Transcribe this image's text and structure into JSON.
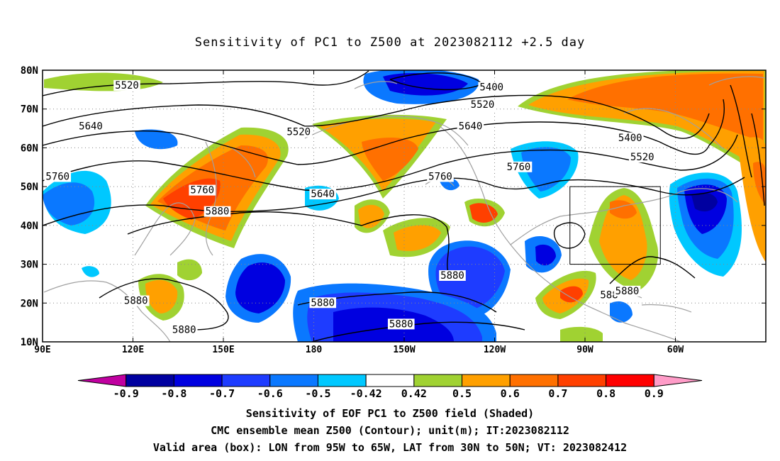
{
  "title": "Sensitivity of PC1 to Z500 at 2023082112 +2.5 day",
  "lat_labels": [
    "80N",
    "70N",
    "60N",
    "50N",
    "40N",
    "30N",
    "20N",
    "10N"
  ],
  "lon_labels": [
    "90E",
    "120E",
    "150E",
    "180",
    "150W",
    "120W",
    "90W",
    "60W"
  ],
  "contour_labels": [
    {
      "text": "5520",
      "lon": 118,
      "lat": 76
    },
    {
      "text": "5400",
      "lon": -121,
      "lat": 75.5
    },
    {
      "text": "5520",
      "lon": -124,
      "lat": 71
    },
    {
      "text": "5640",
      "lon": -128,
      "lat": 65.5
    },
    {
      "text": "5400",
      "lon": -75,
      "lat": 62.5
    },
    {
      "text": "5520",
      "lon": -71,
      "lat": 57.5
    },
    {
      "text": "5640",
      "lon": 106,
      "lat": 65.5
    },
    {
      "text": "5520",
      "lon": 175,
      "lat": 64
    },
    {
      "text": "5760",
      "lon": -138,
      "lat": 52.5
    },
    {
      "text": "5760",
      "lon": -112,
      "lat": 55
    },
    {
      "text": "5760",
      "lon": 95,
      "lat": 52.5
    },
    {
      "text": "5760",
      "lon": 143,
      "lat": 49
    },
    {
      "text": "5640",
      "lon": -177,
      "lat": 48
    },
    {
      "text": "5880",
      "lon": 148,
      "lat": 43.5
    },
    {
      "text": "5880",
      "lon": -134,
      "lat": 27
    },
    {
      "text": "5880",
      "lon": 183,
      "lat": 20
    },
    {
      "text": "5880",
      "lon": 121,
      "lat": 20.5
    },
    {
      "text": "5880",
      "lon": 137,
      "lat": 13
    },
    {
      "text": "5880",
      "lon": -151,
      "lat": 14.5
    },
    {
      "text": "588",
      "lon": -82,
      "lat": 22
    },
    {
      "text": "5880",
      "lon": -76,
      "lat": 23
    }
  ],
  "valid_box": {
    "lon_min": -95,
    "lon_max": -65,
    "lat_min": 30,
    "lat_max": 50
  },
  "colorbar": {
    "labels": [
      "-0.9",
      "-0.8",
      "-0.7",
      "-0.6",
      "-0.5",
      "-0.42",
      "0.42",
      "0.5",
      "0.6",
      "0.7",
      "0.8",
      "0.9"
    ],
    "colors": [
      "#c000a0",
      "#0000a0",
      "#0000e0",
      "#1e3cff",
      "#0a78ff",
      "#00c8ff",
      "#ffffff",
      "#a0d232",
      "#ffa000",
      "#ff7000",
      "#ff4000",
      "#ff0000",
      "#ff9cc8"
    ]
  },
  "caption": [
    "Sensitivity of EOF PC1 to Z500 field (Shaded)",
    "CMC ensemble mean Z500 (Contour); unit(m); IT:2023082112",
    "Valid area (box): LON from 95W to 65W, LAT from 30N to 50N; VT: 2023082412"
  ]
}
